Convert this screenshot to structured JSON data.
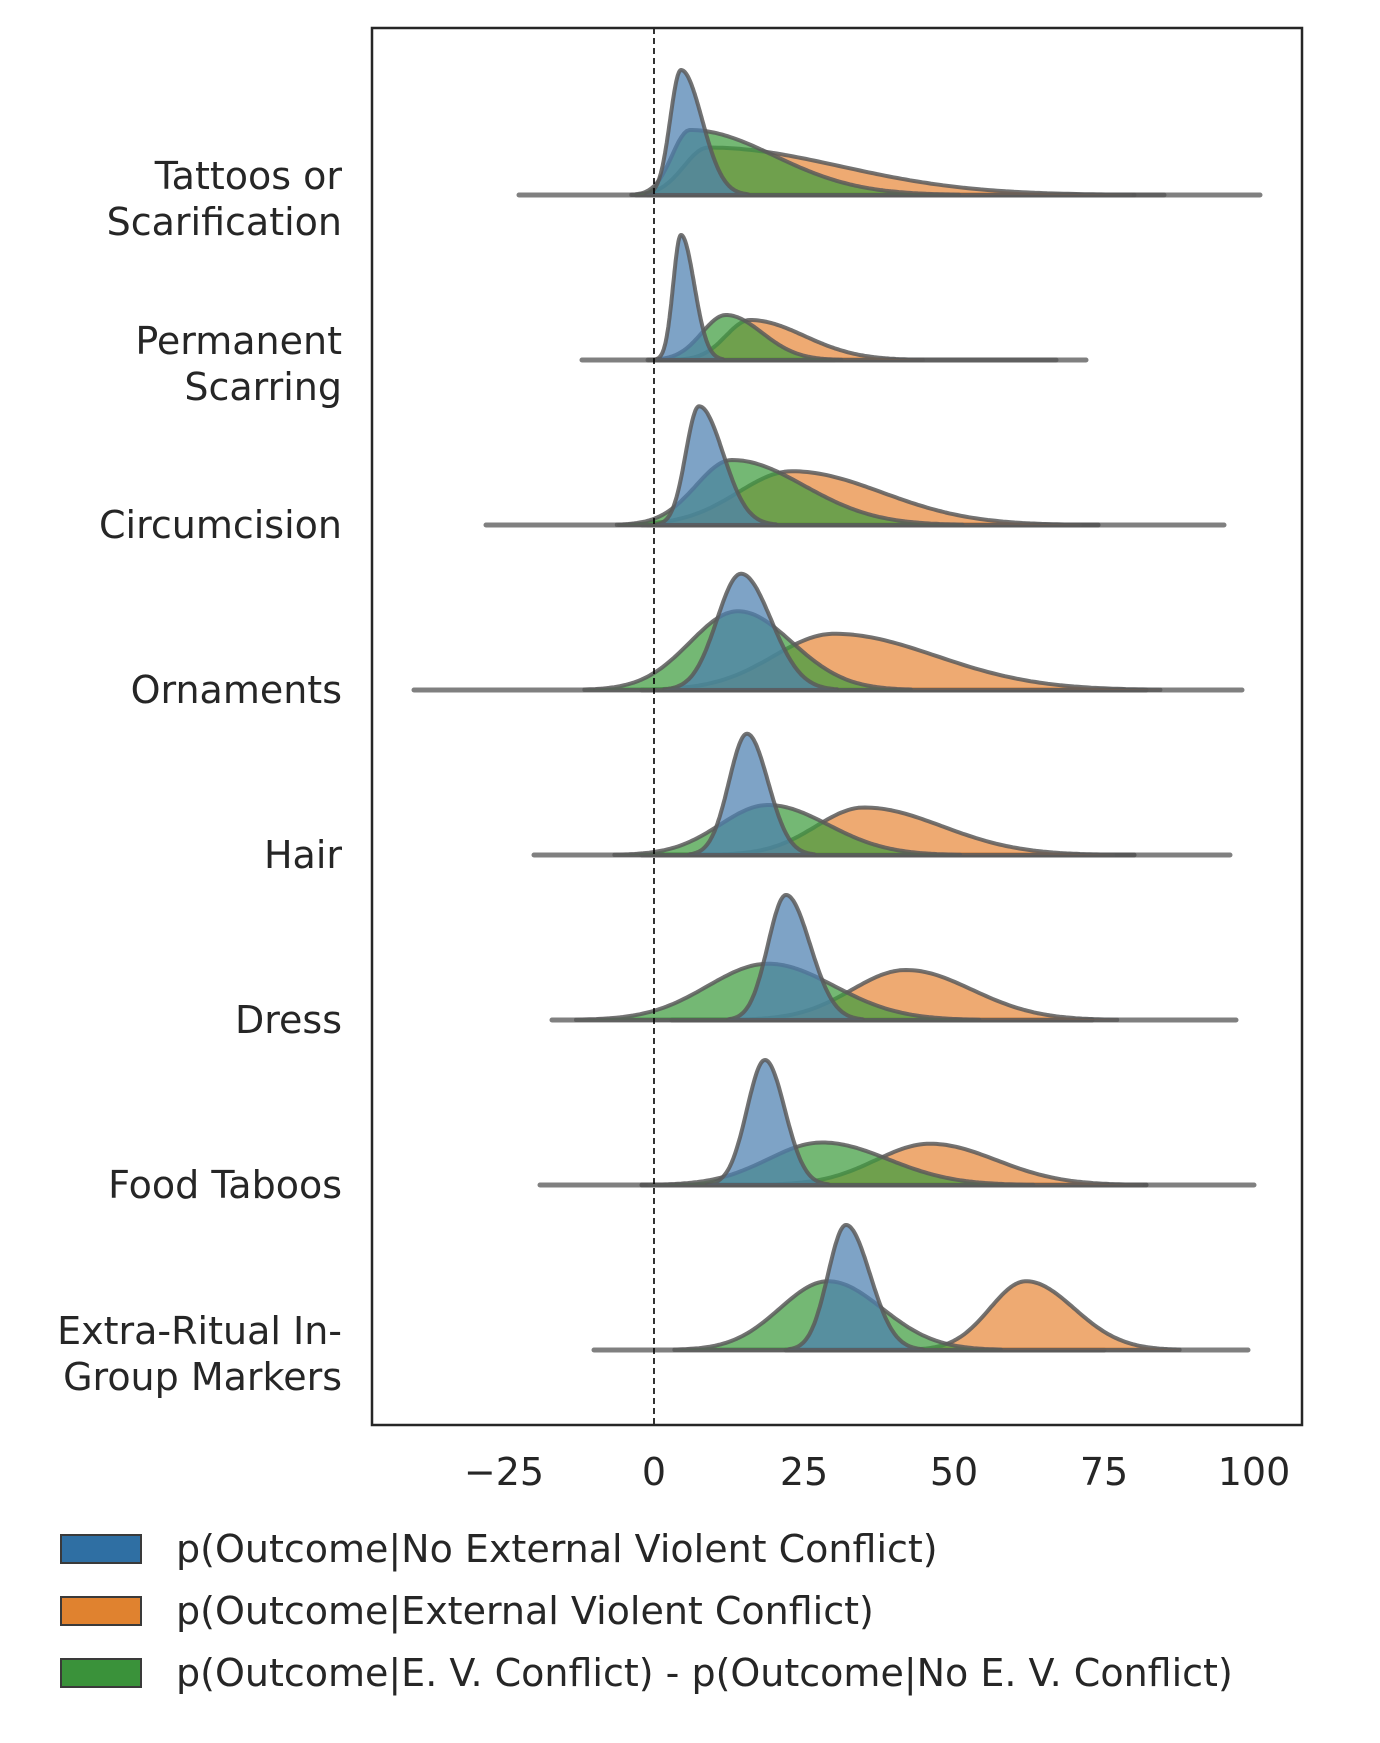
{
  "chart_data": {
    "type": "ridgeline",
    "xlim": [
      -47,
      108
    ],
    "xticks": [
      -25,
      0,
      25,
      50,
      75,
      100
    ],
    "xtick_labels": [
      "−25",
      "0",
      "25",
      "50",
      "75",
      "100"
    ],
    "reference_line_x": 0,
    "grid": false,
    "legend_position": "bottom",
    "colors": {
      "blue": "#4c7fb0",
      "orange": "#e8893b",
      "green": "#3f9c3f"
    },
    "series": [
      {
        "name": "p(Outcome|No External Violent Conflict)",
        "color": "#4c7fb0",
        "swatch": "#2f6fa3"
      },
      {
        "name": "p(Outcome|External Violent Conflict)",
        "color": "#e8893b",
        "swatch": "#e0822f"
      },
      {
        "name": "p(Outcome|E. V. Conflict) - p(Outcome|No E. V. Conflict)",
        "color": "#3f9c3f",
        "swatch": "#3a923a"
      }
    ],
    "categories": [
      {
        "label": [
          "Tattoos or",
          "Scarification"
        ],
        "blue": {
          "peak": 4.5,
          "sd_left": 1.8,
          "sd_right": 3.5,
          "height": 1.0,
          "range": [
            -1,
            80
          ]
        },
        "orange": {
          "peak": 9,
          "sd_left": 4,
          "sd_right": 22,
          "height": 0.38,
          "range": [
            -3,
            85
          ]
        },
        "green": {
          "peak": 6,
          "sd_left": 3,
          "sd_right": 14,
          "height": 0.52,
          "range": [
            -22.5,
            101
          ]
        }
      },
      {
        "label": [
          "Permanent",
          "Scarring"
        ],
        "blue": {
          "peak": 4.5,
          "sd_left": 1.3,
          "sd_right": 2.2,
          "height": 1.0,
          "range": [
            -1,
            67
          ]
        },
        "orange": {
          "peak": 16,
          "sd_left": 4,
          "sd_right": 9,
          "height": 0.32,
          "range": [
            0,
            30
          ]
        },
        "green": {
          "peak": 12,
          "sd_left": 4,
          "sd_right": 6,
          "height": 0.36,
          "range": [
            -12,
            72
          ]
        }
      },
      {
        "label": [
          "Circumcision"
        ],
        "blue": {
          "peak": 7.5,
          "sd_left": 2.2,
          "sd_right": 4,
          "height": 0.95,
          "range": [
            -1,
            74
          ]
        },
        "orange": {
          "peak": 23,
          "sd_left": 9,
          "sd_right": 15,
          "height": 0.43,
          "range": [
            -2,
            74
          ]
        },
        "green": {
          "peak": 13,
          "sd_left": 6,
          "sd_right": 12,
          "height": 0.52,
          "range": [
            -28,
            95
          ]
        }
      },
      {
        "label": [
          "Ornaments"
        ],
        "blue": {
          "peak": 14.5,
          "sd_left": 4,
          "sd_right": 5,
          "height": 0.93,
          "range": [
            -2,
            82
          ]
        },
        "orange": {
          "peak": 30,
          "sd_left": 10,
          "sd_right": 17,
          "height": 0.45,
          "range": [
            -2,
            82
          ]
        },
        "green": {
          "peak": 14,
          "sd_left": 8,
          "sd_right": 9,
          "height": 0.63,
          "range": [
            -40,
            98
          ]
        }
      },
      {
        "label": [
          "Hair"
        ],
        "blue": {
          "peak": 15.5,
          "sd_left": 3,
          "sd_right": 3.5,
          "height": 0.97,
          "range": [
            -2,
            80
          ]
        },
        "orange": {
          "peak": 35,
          "sd_left": 8,
          "sd_right": 13,
          "height": 0.38,
          "range": [
            -2,
            80
          ]
        },
        "green": {
          "peak": 19,
          "sd_left": 8,
          "sd_right": 10,
          "height": 0.4,
          "range": [
            -20,
            96
          ]
        }
      },
      {
        "label": [
          "Dress"
        ],
        "blue": {
          "peak": 22,
          "sd_left": 3,
          "sd_right": 4,
          "height": 1.0,
          "range": [
            3,
            73
          ]
        },
        "orange": {
          "peak": 42,
          "sd_left": 9,
          "sd_right": 11,
          "height": 0.4,
          "range": [
            3,
            73
          ]
        },
        "green": {
          "peak": 19,
          "sd_left": 10,
          "sd_right": 11,
          "height": 0.45,
          "range": [
            -17,
            97
          ]
        }
      },
      {
        "label": [
          "Food Taboos"
        ],
        "blue": {
          "peak": 18.5,
          "sd_left": 3,
          "sd_right": 3.3,
          "height": 1.0,
          "range": [
            -2,
            82
          ]
        },
        "orange": {
          "peak": 46,
          "sd_left": 9,
          "sd_right": 11,
          "height": 0.33,
          "range": [
            -2,
            82
          ]
        },
        "green": {
          "peak": 28,
          "sd_left": 9,
          "sd_right": 11,
          "height": 0.34,
          "range": [
            -19,
            100
          ]
        }
      },
      {
        "label": [
          "Extra-Ritual In-",
          "Group Markers"
        ],
        "blue": {
          "peak": 32,
          "sd_left": 3,
          "sd_right": 4,
          "height": 1.0,
          "range": [
            22,
            75
          ]
        },
        "orange": {
          "peak": 62,
          "sd_left": 6,
          "sd_right": 8,
          "height": 0.55,
          "range": [
            22,
            75
          ]
        },
        "green": {
          "peak": 29,
          "sd_left": 8,
          "sd_right": 9,
          "height": 0.55,
          "range": [
            -10,
            99
          ]
        }
      }
    ]
  }
}
